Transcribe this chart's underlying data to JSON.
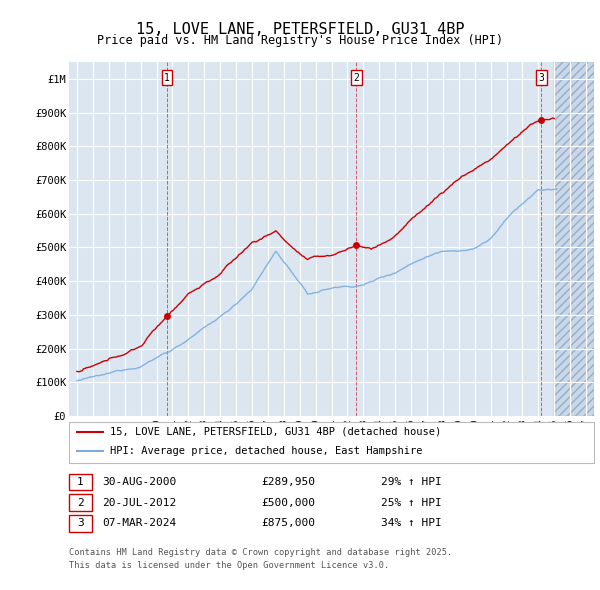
{
  "title": "15, LOVE LANE, PETERSFIELD, GU31 4BP",
  "subtitle": "Price paid vs. HM Land Registry's House Price Index (HPI)",
  "legend_line1": "15, LOVE LANE, PETERSFIELD, GU31 4BP (detached house)",
  "legend_line2": "HPI: Average price, detached house, East Hampshire",
  "footer1": "Contains HM Land Registry data © Crown copyright and database right 2025.",
  "footer2": "This data is licensed under the Open Government Licence v3.0.",
  "transactions": [
    {
      "num": 1,
      "date": "30-AUG-2000",
      "price": 289950,
      "hpi_pct": "29% ↑ HPI",
      "year": 2000.66
    },
    {
      "num": 2,
      "date": "20-JUL-2012",
      "price": 500000,
      "hpi_pct": "25% ↑ HPI",
      "year": 2012.55
    },
    {
      "num": 3,
      "date": "07-MAR-2024",
      "price": 875000,
      "hpi_pct": "34% ↑ HPI",
      "year": 2024.18
    }
  ],
  "xlim": [
    1994.5,
    2027.5
  ],
  "ylim": [
    0,
    1050000
  ],
  "yticks": [
    0,
    100000,
    200000,
    300000,
    400000,
    500000,
    600000,
    700000,
    800000,
    900000,
    1000000
  ],
  "ytick_labels": [
    "£0",
    "£100K",
    "£200K",
    "£300K",
    "£400K",
    "£500K",
    "£600K",
    "£700K",
    "£800K",
    "£900K",
    "£1M"
  ],
  "red_color": "#cc0000",
  "blue_color": "#7aadde",
  "bg_color": "#dce6f1",
  "grid_color": "#ffffff",
  "hatch_color": "#c8d8e8"
}
